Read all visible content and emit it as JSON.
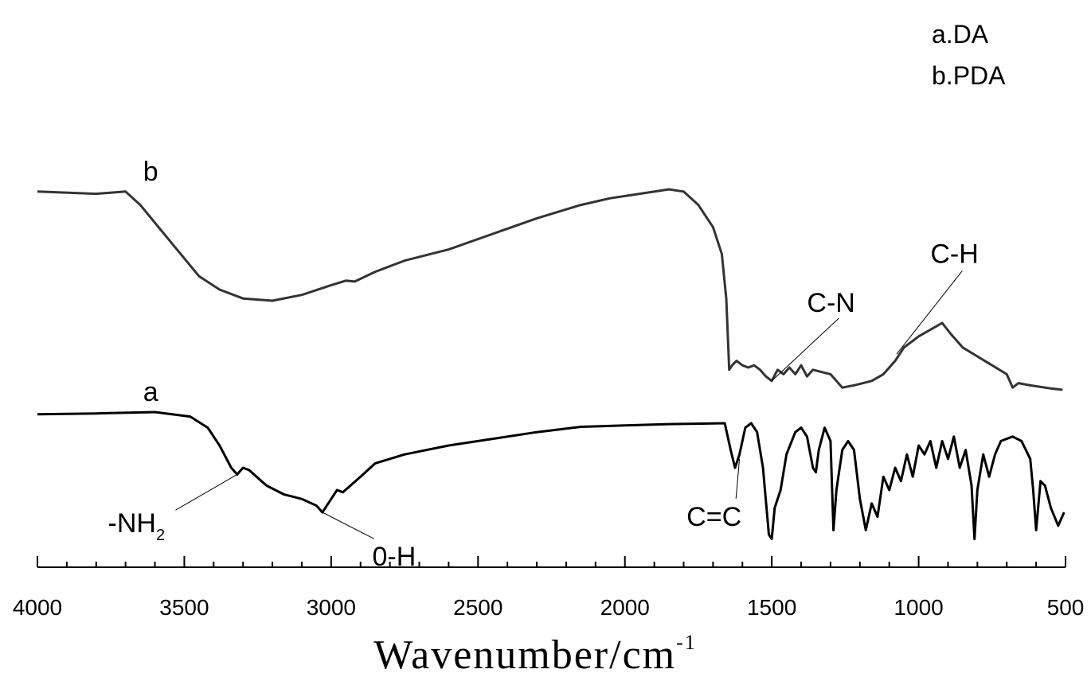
{
  "chart_data": {
    "type": "line",
    "title": "",
    "xlabel": "Wavenumber/cm",
    "xlabel_superscript": "-1",
    "ylabel": "",
    "xlim": [
      4000,
      500
    ],
    "x_reversed": true,
    "grid": false,
    "x_ticks": [
      4000,
      3500,
      3000,
      2500,
      2000,
      1500,
      1000,
      500
    ],
    "x_tick_labels": [
      "4000",
      "3500",
      "3000",
      "2500",
      "2000",
      "1500",
      "1000",
      "500"
    ],
    "legend": {
      "placement": "top-right",
      "entries": [
        "a.DA",
        "b.PDA"
      ]
    },
    "series": [
      {
        "name": "b",
        "color": "#333333",
        "points": [
          [
            4000,
            0.82
          ],
          [
            3800,
            0.815
          ],
          [
            3700,
            0.82
          ],
          [
            3650,
            0.79
          ],
          [
            3550,
            0.71
          ],
          [
            3450,
            0.63
          ],
          [
            3380,
            0.6
          ],
          [
            3300,
            0.58
          ],
          [
            3200,
            0.575
          ],
          [
            3100,
            0.588
          ],
          [
            3000,
            0.61
          ],
          [
            2950,
            0.62
          ],
          [
            2920,
            0.618
          ],
          [
            2850,
            0.64
          ],
          [
            2750,
            0.665
          ],
          [
            2600,
            0.69
          ],
          [
            2450,
            0.725
          ],
          [
            2300,
            0.76
          ],
          [
            2150,
            0.79
          ],
          [
            2050,
            0.805
          ],
          [
            1950,
            0.815
          ],
          [
            1850,
            0.825
          ],
          [
            1800,
            0.82
          ],
          [
            1750,
            0.79
          ],
          [
            1700,
            0.74
          ],
          [
            1670,
            0.68
          ],
          [
            1655,
            0.58
          ],
          [
            1645,
            0.42
          ],
          [
            1635,
            0.43
          ],
          [
            1620,
            0.44
          ],
          [
            1600,
            0.43
          ],
          [
            1580,
            0.425
          ],
          [
            1560,
            0.43
          ],
          [
            1540,
            0.42
          ],
          [
            1520,
            0.405
          ],
          [
            1500,
            0.395
          ],
          [
            1480,
            0.42
          ],
          [
            1460,
            0.41
          ],
          [
            1440,
            0.425
          ],
          [
            1420,
            0.41
          ],
          [
            1400,
            0.43
          ],
          [
            1380,
            0.405
          ],
          [
            1360,
            0.42
          ],
          [
            1300,
            0.41
          ],
          [
            1260,
            0.38
          ],
          [
            1220,
            0.385
          ],
          [
            1160,
            0.395
          ],
          [
            1120,
            0.41
          ],
          [
            1100,
            0.425
          ],
          [
            1080,
            0.44
          ],
          [
            1050,
            0.47
          ],
          [
            1000,
            0.495
          ],
          [
            960,
            0.51
          ],
          [
            920,
            0.525
          ],
          [
            890,
            0.5
          ],
          [
            850,
            0.47
          ],
          [
            800,
            0.45
          ],
          [
            750,
            0.43
          ],
          [
            700,
            0.41
          ],
          [
            680,
            0.38
          ],
          [
            660,
            0.39
          ],
          [
            620,
            0.385
          ],
          [
            550,
            0.378
          ],
          [
            510,
            0.375
          ]
        ]
      },
      {
        "name": "a",
        "color": "#000000",
        "points": [
          [
            4000,
            0.32
          ],
          [
            3800,
            0.322
          ],
          [
            3600,
            0.325
          ],
          [
            3480,
            0.315
          ],
          [
            3420,
            0.29
          ],
          [
            3380,
            0.25
          ],
          [
            3340,
            0.2
          ],
          [
            3320,
            0.185
          ],
          [
            3300,
            0.2
          ],
          [
            3280,
            0.195
          ],
          [
            3220,
            0.16
          ],
          [
            3160,
            0.14
          ],
          [
            3100,
            0.13
          ],
          [
            3050,
            0.115
          ],
          [
            3030,
            0.1
          ],
          [
            3010,
            0.12
          ],
          [
            2980,
            0.15
          ],
          [
            2960,
            0.145
          ],
          [
            2900,
            0.18
          ],
          [
            2850,
            0.21
          ],
          [
            2750,
            0.23
          ],
          [
            2600,
            0.25
          ],
          [
            2450,
            0.265
          ],
          [
            2300,
            0.28
          ],
          [
            2150,
            0.292
          ],
          [
            2000,
            0.295
          ],
          [
            1850,
            0.298
          ],
          [
            1660,
            0.3
          ],
          [
            1640,
            0.24
          ],
          [
            1625,
            0.2
          ],
          [
            1610,
            0.23
          ],
          [
            1590,
            0.29
          ],
          [
            1570,
            0.3
          ],
          [
            1550,
            0.28
          ],
          [
            1530,
            0.2
          ],
          [
            1510,
            0.05
          ],
          [
            1500,
            0.04
          ],
          [
            1490,
            0.11
          ],
          [
            1470,
            0.15
          ],
          [
            1450,
            0.23
          ],
          [
            1420,
            0.28
          ],
          [
            1400,
            0.29
          ],
          [
            1380,
            0.27
          ],
          [
            1360,
            0.2
          ],
          [
            1350,
            0.19
          ],
          [
            1340,
            0.24
          ],
          [
            1320,
            0.29
          ],
          [
            1300,
            0.26
          ],
          [
            1290,
            0.06
          ],
          [
            1280,
            0.15
          ],
          [
            1260,
            0.24
          ],
          [
            1240,
            0.26
          ],
          [
            1220,
            0.24
          ],
          [
            1200,
            0.13
          ],
          [
            1180,
            0.06
          ],
          [
            1160,
            0.12
          ],
          [
            1140,
            0.09
          ],
          [
            1120,
            0.18
          ],
          [
            1100,
            0.15
          ],
          [
            1080,
            0.2
          ],
          [
            1060,
            0.17
          ],
          [
            1040,
            0.23
          ],
          [
            1020,
            0.18
          ],
          [
            1000,
            0.25
          ],
          [
            980,
            0.23
          ],
          [
            960,
            0.26
          ],
          [
            940,
            0.2
          ],
          [
            920,
            0.26
          ],
          [
            900,
            0.22
          ],
          [
            880,
            0.27
          ],
          [
            860,
            0.2
          ],
          [
            840,
            0.24
          ],
          [
            820,
            0.16
          ],
          [
            810,
            0.04
          ],
          [
            800,
            0.15
          ],
          [
            780,
            0.23
          ],
          [
            760,
            0.18
          ],
          [
            740,
            0.23
          ],
          [
            720,
            0.26
          ],
          [
            680,
            0.27
          ],
          [
            650,
            0.26
          ],
          [
            620,
            0.22
          ],
          [
            610,
            0.15
          ],
          [
            600,
            0.06
          ],
          [
            585,
            0.17
          ],
          [
            570,
            0.16
          ],
          [
            550,
            0.11
          ],
          [
            525,
            0.07
          ],
          [
            505,
            0.1
          ]
        ]
      }
    ],
    "series_labels": [
      {
        "text": "b",
        "x": 3640,
        "y": 0.845
      },
      {
        "text": "a",
        "x": 3640,
        "y": 0.35
      }
    ],
    "annotations": [
      {
        "text": "-NH",
        "subscript": "2",
        "x": 3760,
        "y": 0.055,
        "arrow_to": [
          3320,
          0.185
        ]
      },
      {
        "text": "0-H",
        "x": 2860,
        "y": -0.02,
        "arrow_to": [
          3030,
          0.1
        ]
      },
      {
        "text": "C=C",
        "x": 1790,
        "y": 0.07,
        "arrow_to": [
          1610,
          0.22
        ]
      },
      {
        "text": "C-N",
        "x": 1380,
        "y": 0.55,
        "arrow_to": [
          1500,
          0.395
        ]
      },
      {
        "text": "C-H",
        "x": 960,
        "y": 0.66,
        "arrow_to": [
          1075,
          0.455
        ]
      }
    ]
  }
}
